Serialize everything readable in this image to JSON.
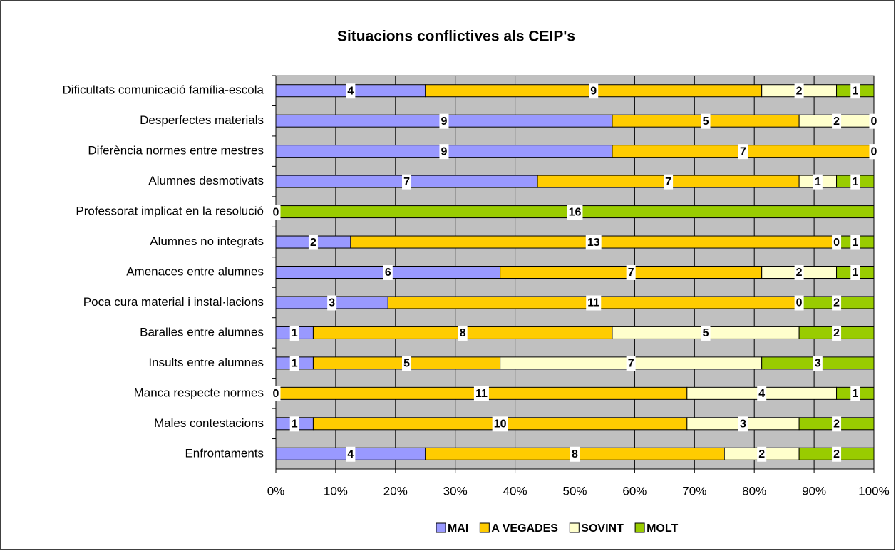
{
  "chart_data": {
    "type": "bar",
    "orientation": "horizontal",
    "stacking": "percent",
    "title": "Situacions conflictives als CEIP's",
    "categories": [
      "Dificultats comunicació família-escola",
      "Desperfectes materials",
      "Diferència normes entre mestres",
      "Alumnes desmotivats",
      "Professorat implicat en la resolució",
      "Alumnes no integrats",
      "Amenaces entre alumnes",
      "Poca cura material i instal·lacions",
      "Baralles entre alumnes",
      "Insults entre alumnes",
      "Manca respecte normes",
      "Males contestacions",
      "Enfrontaments"
    ],
    "series": [
      {
        "name": "MAI",
        "color": "#9999ff",
        "values": [
          4,
          9,
          9,
          7,
          0,
          2,
          6,
          3,
          1,
          1,
          0,
          1,
          4
        ]
      },
      {
        "name": "A VEGADES",
        "color": "#ffcc00",
        "values": [
          9,
          5,
          7,
          7,
          0,
          13,
          7,
          11,
          8,
          5,
          11,
          10,
          8
        ]
      },
      {
        "name": "SOVINT",
        "color": "#ffffcc",
        "values": [
          2,
          2,
          0,
          1,
          0,
          0,
          2,
          0,
          5,
          7,
          4,
          3,
          2
        ]
      },
      {
        "name": "MOLT",
        "color": "#99cc00",
        "values": [
          1,
          0,
          0,
          1,
          16,
          1,
          1,
          2,
          2,
          3,
          1,
          2,
          2
        ]
      }
    ],
    "xlim": [
      0,
      100
    ],
    "xticks": [
      {
        "value": 0,
        "label": "0%"
      },
      {
        "value": 10,
        "label": "10%"
      },
      {
        "value": 20,
        "label": "20%"
      },
      {
        "value": 30,
        "label": "30%"
      },
      {
        "value": 40,
        "label": "40%"
      },
      {
        "value": 50,
        "label": "50%"
      },
      {
        "value": 60,
        "label": "60%"
      },
      {
        "value": 70,
        "label": "70%"
      },
      {
        "value": 80,
        "label": "80%"
      },
      {
        "value": 90,
        "label": "90%"
      },
      {
        "value": 100,
        "label": "100%"
      }
    ],
    "grid": true,
    "legend": "bottom"
  }
}
